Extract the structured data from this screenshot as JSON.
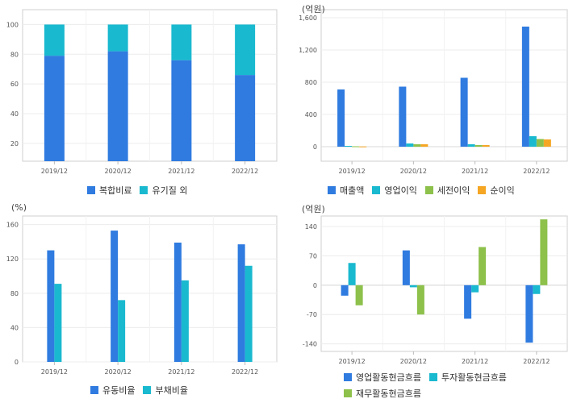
{
  "chart_data": [
    {
      "id": "c1",
      "type": "bar",
      "stacked": true,
      "categories": [
        "2019/12",
        "2020/12",
        "2021/12",
        "2022/12"
      ],
      "series": [
        {
          "name": "복합비료",
          "color": "#2f7be0",
          "values": [
            79,
            82,
            76,
            66
          ]
        },
        {
          "name": "유기질 외",
          "color": "#19b9cf",
          "values": [
            21,
            18,
            24,
            34
          ]
        }
      ],
      "ylim": [
        8,
        110
      ],
      "yticks": [
        "20",
        "40",
        "60",
        "80",
        "100"
      ],
      "unit": ""
    },
    {
      "id": "c2",
      "type": "bar",
      "categories": [
        "2019/12",
        "2020/12",
        "2021/12",
        "2022/12"
      ],
      "series": [
        {
          "name": "매출액",
          "color": "#2f7be0",
          "values": [
            710,
            745,
            855,
            1490
          ]
        },
        {
          "name": "영업이익",
          "color": "#19b9cf",
          "values": [
            10,
            40,
            30,
            130
          ]
        },
        {
          "name": "세전이익",
          "color": "#8dc14b",
          "values": [
            5,
            30,
            20,
            95
          ]
        },
        {
          "name": "순이익",
          "color": "#f5a623",
          "values": [
            3,
            30,
            20,
            90
          ]
        }
      ],
      "ylim": [
        -180,
        1700
      ],
      "yticks": [
        "0",
        "400",
        "800",
        "1,200",
        "1,600"
      ],
      "unit": "(억원)"
    },
    {
      "id": "c3",
      "type": "bar",
      "categories": [
        "2019/12",
        "2020/12",
        "2021/12",
        "2022/12"
      ],
      "series": [
        {
          "name": "유동비율",
          "color": "#2f7be0",
          "values": [
            130,
            153,
            139,
            137
          ]
        },
        {
          "name": "부채비율",
          "color": "#19b9cf",
          "values": [
            91,
            72,
            95,
            112
          ]
        }
      ],
      "ylim": [
        0,
        170
      ],
      "yticks": [
        "0",
        "40",
        "80",
        "120",
        "160"
      ],
      "unit": "(%)"
    },
    {
      "id": "c4",
      "type": "bar",
      "categories": [
        "2019/12",
        "2020/12",
        "2021/12",
        "2022/12"
      ],
      "series": [
        {
          "name": "영업활동현금흐름",
          "color": "#2f7be0",
          "values": [
            -25,
            83,
            -80,
            -137
          ]
        },
        {
          "name": "투자활동현금흐름",
          "color": "#19b9cf",
          "values": [
            53,
            -5,
            -17,
            -21
          ]
        },
        {
          "name": "재무활동현금흐름",
          "color": "#8dc14b",
          "values": [
            -48,
            -70,
            91,
            157
          ]
        }
      ],
      "ylim": [
        -158,
        165
      ],
      "yticks": [
        "-140",
        "-70",
        "0",
        "70",
        "140"
      ],
      "unit": "(억원)"
    }
  ]
}
